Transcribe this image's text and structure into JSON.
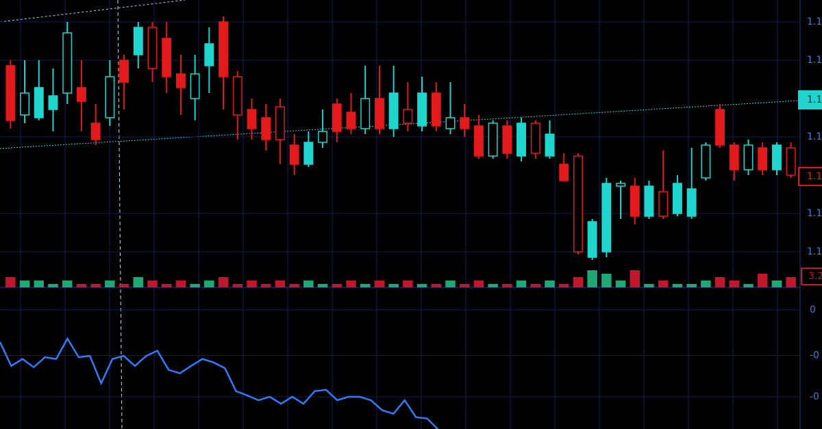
{
  "chart_data": [
    {
      "type": "candlestick",
      "up_color": "#1fd6cf",
      "down_color": "#e3191b",
      "ylim": [
        0,
        100
      ],
      "yticks": [
        {
          "value": 92,
          "label": "1.1"
        },
        {
          "value": 78,
          "label": "1.1"
        },
        {
          "value": 50,
          "label": "1.1"
        },
        {
          "value": 22,
          "label": "1.1"
        },
        {
          "value": 8,
          "label": "1.1"
        }
      ],
      "price_labels": [
        {
          "value": 63.5,
          "label": "1.1",
          "color": "#1fd6cf"
        },
        {
          "value": 35.5,
          "label": "1.1",
          "color": "#e3191b"
        }
      ],
      "values": [
        [
          76,
          56,
          78,
          53
        ],
        [
          58,
          66,
          78,
          55
        ],
        [
          57,
          68,
          78,
          56
        ],
        [
          60,
          65,
          75,
          52
        ],
        [
          66,
          88,
          92,
          62
        ],
        [
          68,
          63,
          78,
          52
        ],
        [
          55,
          49,
          62,
          47
        ],
        [
          57,
          72,
          78,
          54
        ],
        [
          78,
          70,
          80,
          60
        ],
        [
          80,
          90,
          92,
          75
        ],
        [
          90,
          75,
          92,
          70
        ],
        [
          86,
          72,
          92,
          66
        ],
        [
          73,
          68,
          80,
          58
        ],
        [
          64,
          73,
          80,
          56
        ],
        [
          76,
          84,
          90,
          66
        ],
        [
          92,
          72,
          94,
          60
        ],
        [
          72,
          58,
          74,
          49
        ],
        [
          60,
          53,
          64,
          49
        ],
        [
          57,
          49,
          62,
          45
        ],
        [
          61,
          49,
          64,
          40
        ],
        [
          47,
          40,
          51,
          36
        ],
        [
          40,
          48,
          52,
          39
        ],
        [
          48,
          52,
          60,
          46
        ],
        [
          62,
          52,
          64,
          48
        ],
        [
          59,
          53,
          66,
          51
        ],
        [
          53,
          64,
          76,
          51
        ],
        [
          64,
          53,
          76,
          51
        ],
        [
          53,
          66,
          76,
          50
        ],
        [
          60,
          55,
          70,
          52
        ],
        [
          54,
          66,
          72,
          52
        ],
        [
          66,
          54,
          70,
          52
        ],
        [
          53,
          57,
          70,
          51
        ],
        [
          57,
          53,
          62,
          50
        ],
        [
          54,
          43,
          58,
          42
        ],
        [
          43,
          55,
          56,
          42
        ],
        [
          54,
          44,
          56,
          42
        ],
        [
          43,
          55,
          57,
          41
        ],
        [
          55,
          44,
          56,
          42
        ],
        [
          43,
          51,
          56,
          42
        ],
        [
          40,
          34,
          44,
          34
        ],
        [
          43,
          8,
          44,
          7
        ],
        [
          6,
          19,
          20,
          5
        ],
        [
          8,
          33,
          35,
          6
        ],
        [
          32,
          33,
          34,
          20
        ],
        [
          32,
          21,
          35,
          18
        ],
        [
          21,
          32,
          34,
          20
        ],
        [
          30,
          21,
          45,
          20
        ],
        [
          22,
          33,
          36,
          21
        ],
        [
          21,
          31,
          46,
          20
        ],
        [
          35,
          47,
          48,
          34
        ],
        [
          60,
          47,
          62,
          46
        ],
        [
          47,
          38,
          48,
          34
        ],
        [
          38,
          47,
          49,
          36
        ],
        [
          46,
          38,
          48,
          36
        ],
        [
          38,
          47,
          48,
          36
        ],
        [
          46,
          36,
          48,
          35
        ]
      ]
    },
    {
      "type": "bar",
      "up_color": "#1fa877",
      "down_color": "#c0182a",
      "ylim": [
        0,
        24
      ],
      "current": 3.2,
      "values": [
        3,
        2,
        2,
        1,
        2,
        1,
        1,
        2,
        1,
        3,
        2,
        1,
        2,
        1,
        2,
        3,
        1,
        2,
        1,
        2,
        1,
        2,
        1,
        1,
        2,
        1,
        2,
        1,
        2,
        1,
        1,
        2,
        1,
        2,
        1,
        1,
        2,
        1,
        2,
        1,
        3,
        5,
        4,
        2,
        5,
        1,
        2,
        1,
        1,
        2,
        3,
        2,
        1,
        4,
        2,
        3
      ]
    },
    {
      "type": "line",
      "color": "#2f7bff",
      "ylim": [
        -2.8,
        0.36
      ],
      "yticks": [
        {
          "value": 0,
          "label": "0"
        },
        {
          "value": -1.05,
          "label": "-0"
        },
        {
          "value": -2,
          "label": "-0"
        }
      ],
      "values": [
        -0.74,
        -1.29,
        -1.13,
        -1.32,
        -1.09,
        -1.13,
        -0.66,
        -1.09,
        -1.06,
        -1.69,
        -1.13,
        -1.06,
        -1.29,
        -1.06,
        -0.94,
        -1.38,
        -1.46,
        -1.29,
        -1.13,
        -1.21,
        -1.34,
        -1.87,
        -1.97,
        -2.08,
        -2.0,
        -2.16,
        -2.0,
        -2.16,
        -1.87,
        -1.84,
        -2.08,
        -2.0,
        -2.0,
        -2.08,
        -2.31,
        -2.39,
        -2.08,
        -2.47,
        -2.5,
        -2.76
      ]
    }
  ]
}
